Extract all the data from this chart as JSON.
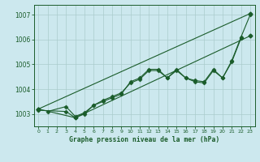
{
  "title": "Graphe pression niveau de la mer (hPa)",
  "bg_color": "#cce8ee",
  "grid_color": "#aacccc",
  "line_color": "#1a5c2a",
  "xlim": [
    -0.5,
    23.5
  ],
  "ylim": [
    1002.5,
    1007.4
  ],
  "yticks": [
    1003,
    1004,
    1005,
    1006,
    1007
  ],
  "xticks": [
    0,
    1,
    2,
    3,
    4,
    5,
    6,
    7,
    8,
    9,
    10,
    11,
    12,
    13,
    14,
    15,
    16,
    17,
    18,
    19,
    20,
    21,
    22,
    23
  ],
  "line1_x": [
    0,
    23
  ],
  "line1_y": [
    1003.2,
    1007.05
  ],
  "line2_x": [
    0,
    3,
    4,
    5,
    6,
    7,
    8,
    9,
    10,
    11,
    12,
    13,
    14,
    15,
    16,
    17,
    18,
    19,
    20,
    21,
    22,
    23
  ],
  "line2_y": [
    1003.15,
    1003.1,
    1002.85,
    1003.0,
    1003.35,
    1003.5,
    1003.65,
    1003.8,
    1004.3,
    1004.45,
    1004.8,
    1004.8,
    1004.45,
    1004.8,
    1004.45,
    1004.35,
    1004.3,
    1004.8,
    1004.45,
    1005.15,
    1006.1,
    1007.0
  ],
  "line3_x": [
    1,
    3,
    4,
    5,
    6,
    7,
    8,
    9,
    10,
    11,
    12,
    13,
    14,
    15,
    16,
    17,
    18,
    19,
    20,
    21,
    22
  ],
  "line3_y": [
    1003.1,
    1003.3,
    1002.9,
    1003.05,
    1003.35,
    1003.55,
    1003.7,
    1003.85,
    1004.25,
    1004.4,
    1004.75,
    1004.75,
    1004.45,
    1004.75,
    1004.45,
    1004.3,
    1004.25,
    1004.75,
    1004.45,
    1005.1,
    1006.05
  ],
  "line4_x": [
    0,
    4,
    23
  ],
  "line4_y": [
    1003.2,
    1002.85,
    1006.15
  ]
}
